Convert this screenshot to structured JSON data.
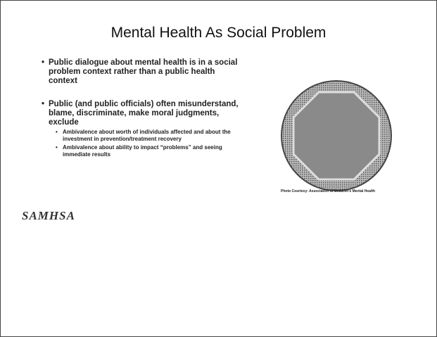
{
  "header": {
    "title": "Mental Health As Social Problem"
  },
  "bullets": [
    {
      "text": "Public dialogue about mental health is in a social problem context rather than a public health context",
      "subbullets": []
    },
    {
      "text": "Public (and public officials) often misunderstand, blame, discriminate, make moral judgments, exclude",
      "subbullets": [
        "Ambivalence about worth of individuals affected and about the investment in prevention/treatment recovery",
        "Ambivalence about ability to impact “problems” and seeing immediate results"
      ]
    }
  ],
  "image": {
    "caption": "Photo Courtesy: Association of Children's Mental Health"
  },
  "logo": {
    "text": "SAMHSA"
  }
}
